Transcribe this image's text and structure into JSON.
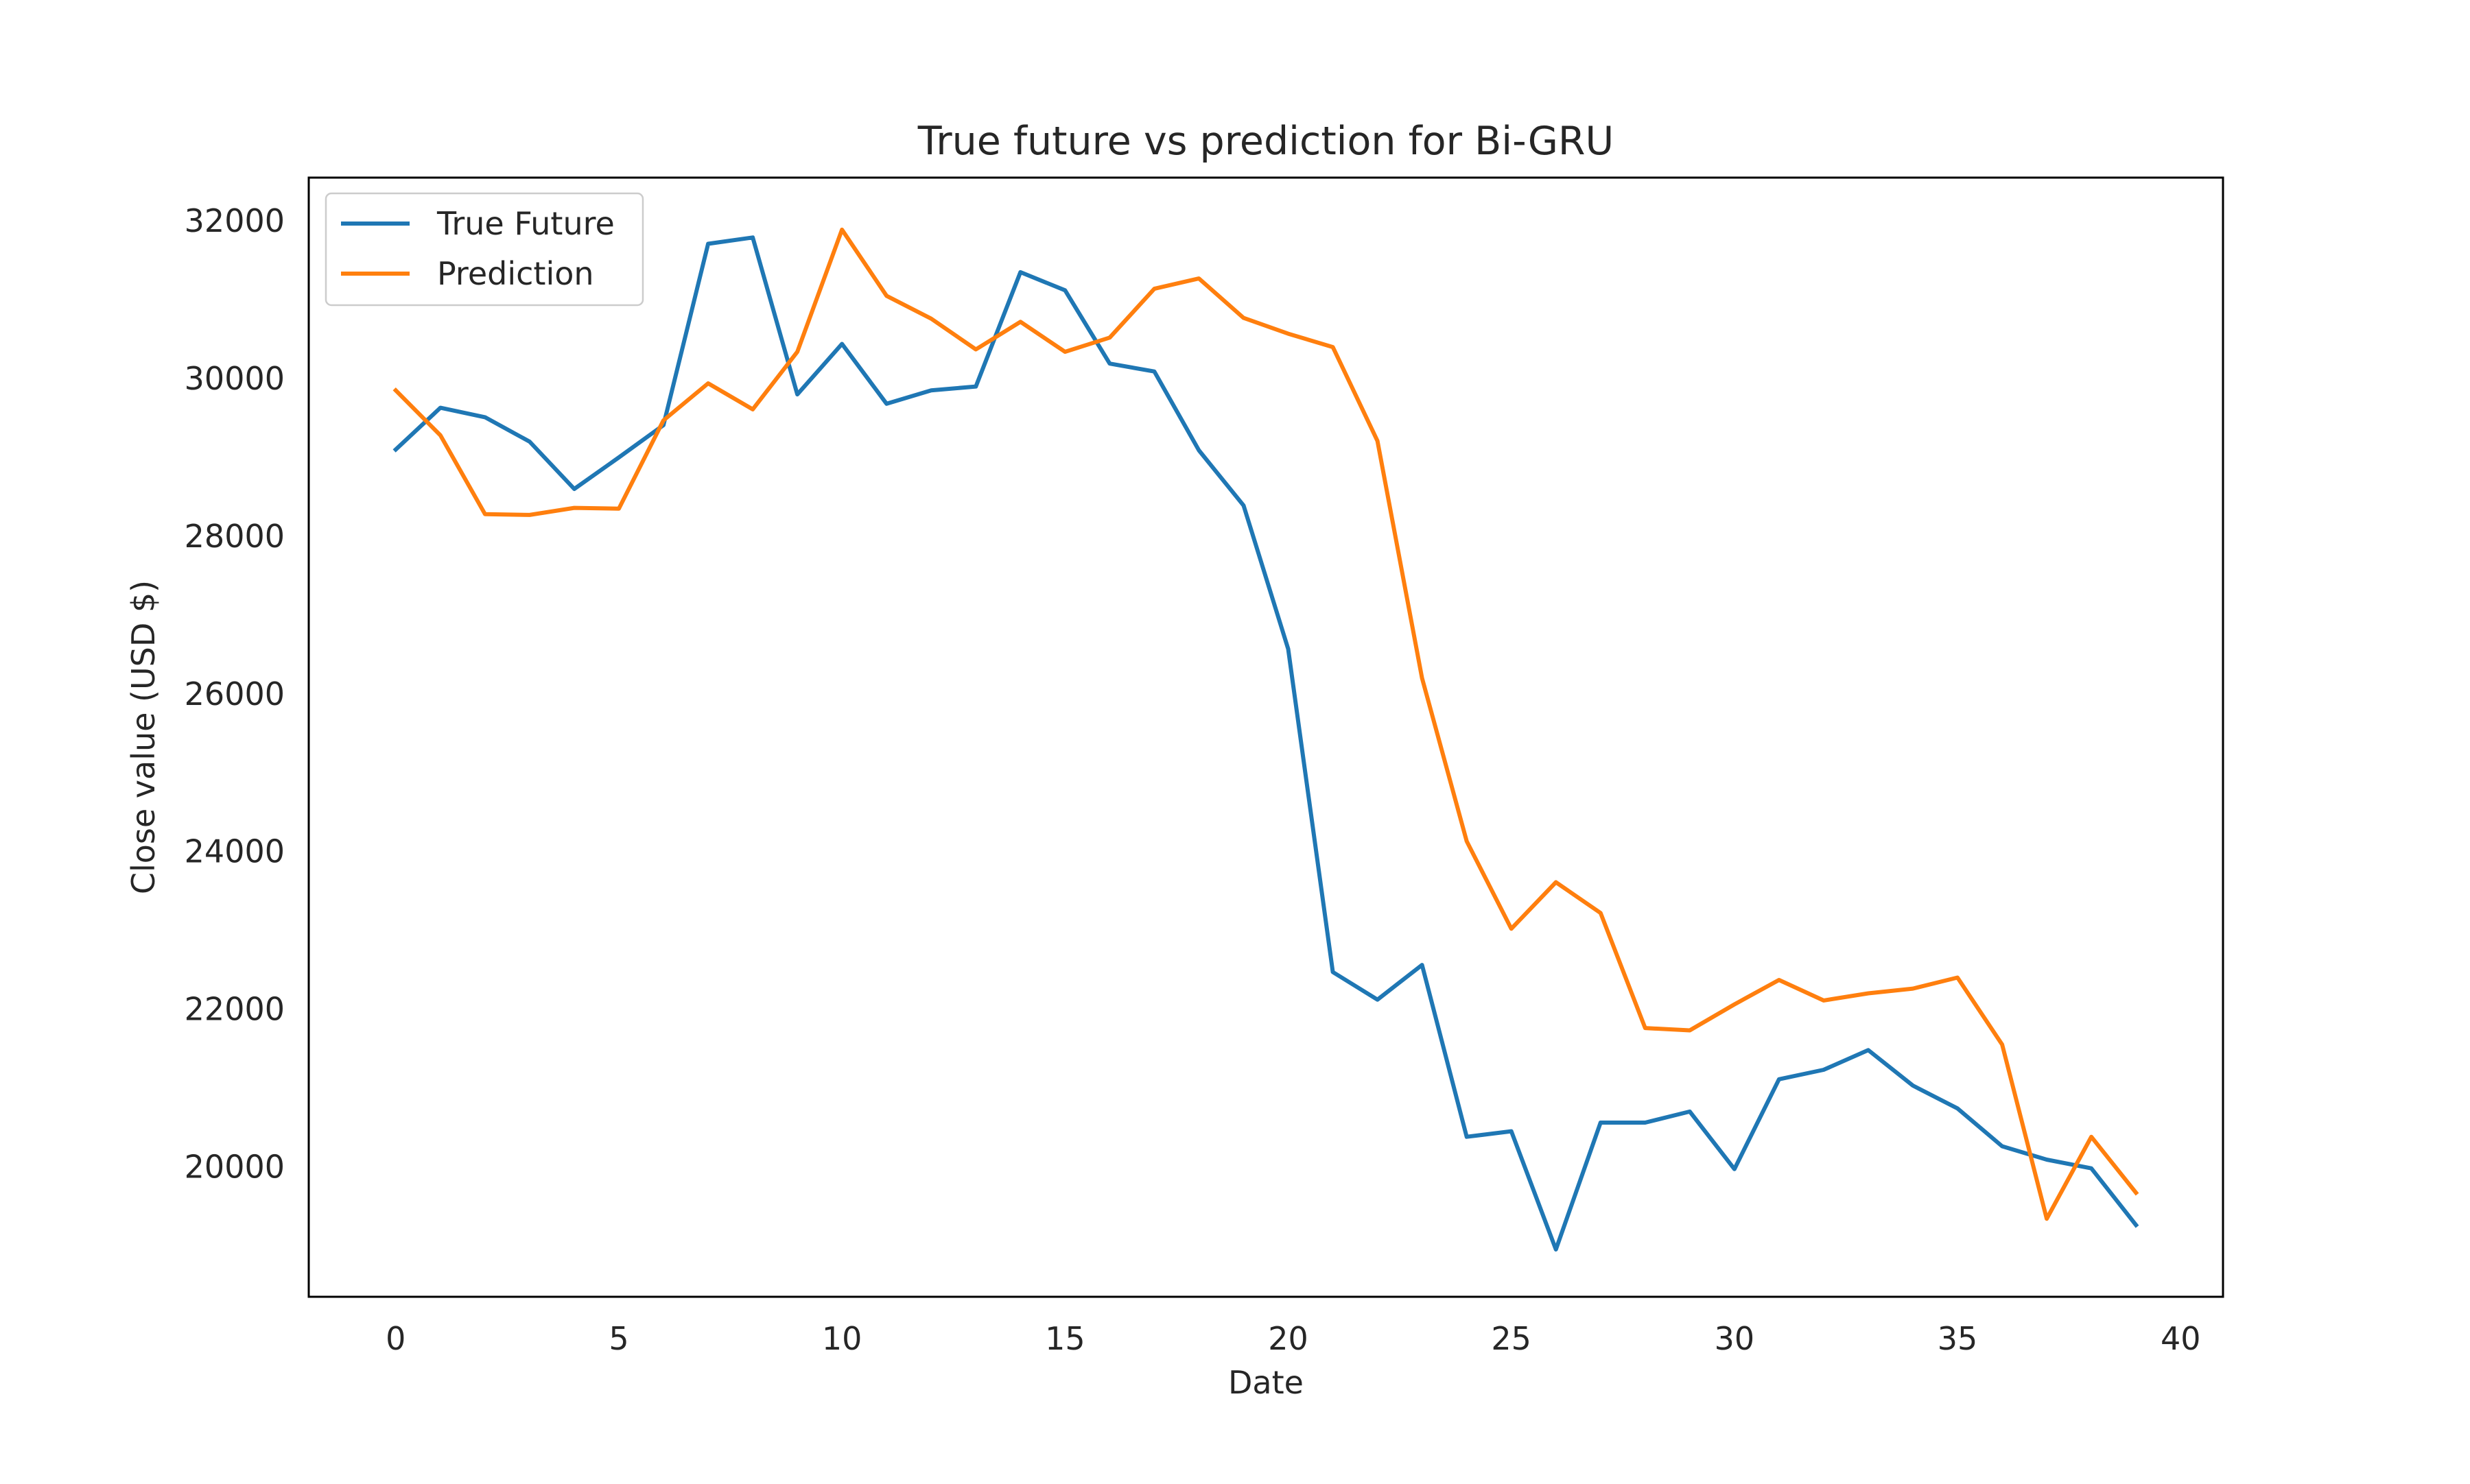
{
  "chart_data": {
    "type": "line",
    "title": "True future vs prediction for Bi-GRU",
    "xlabel": "Date",
    "ylabel": "Close value (USD $)",
    "xlim": [
      -1.95,
      40.95
    ],
    "ylim": [
      18350,
      32550
    ],
    "xticks": [
      0,
      5,
      10,
      15,
      20,
      25,
      30,
      35,
      40
    ],
    "yticks": [
      20000,
      22000,
      24000,
      26000,
      28000,
      30000,
      32000
    ],
    "grid": false,
    "legend_position": "upper left",
    "x": [
      0,
      1,
      2,
      3,
      4,
      5,
      6,
      7,
      8,
      9,
      10,
      11,
      12,
      13,
      14,
      15,
      16,
      17,
      18,
      19,
      20,
      21,
      22,
      23,
      24,
      25,
      26,
      27,
      28,
      29,
      30,
      31,
      32,
      33,
      34,
      35,
      36,
      37,
      38,
      39
    ],
    "series": [
      {
        "name": "True Future",
        "color": "#1f77b4",
        "values": [
          29100,
          29630,
          29510,
          29200,
          28600,
          29000,
          29410,
          31710,
          31790,
          29800,
          30440,
          29680,
          29850,
          29900,
          31350,
          31120,
          30190,
          30090,
          29090,
          28390,
          26570,
          22470,
          22120,
          22560,
          20380,
          20450,
          18950,
          20560,
          20560,
          20700,
          19970,
          21110,
          21230,
          21480,
          21030,
          20740,
          20260,
          20090,
          19980,
          19260
        ]
      },
      {
        "name": "Prediction",
        "color": "#ff7f0e",
        "values": [
          29850,
          29280,
          28280,
          28270,
          28360,
          28350,
          29470,
          29940,
          29610,
          30340,
          31890,
          31050,
          30760,
          30370,
          30720,
          30340,
          30520,
          31140,
          31270,
          30770,
          30570,
          30400,
          29210,
          26200,
          24130,
          23020,
          23610,
          23220,
          21760,
          21730,
          22060,
          22370,
          22110,
          22200,
          22260,
          22400,
          21550,
          19340,
          20380,
          19670
        ]
      }
    ]
  }
}
